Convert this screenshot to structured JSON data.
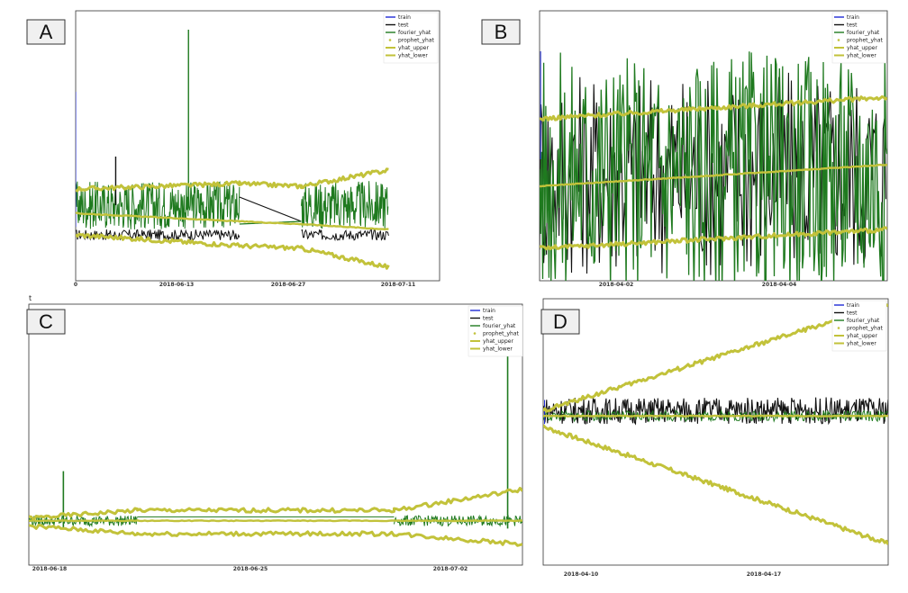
{
  "stray_mark": "t",
  "chart_data": [
    {
      "panel": "A",
      "type": "line",
      "legend": [
        "train",
        "test",
        "fourier_yhat",
        "prophet_yhat",
        "yhat_upper",
        "yhat_lower"
      ],
      "colors": {
        "train": "#1f2bd6",
        "test": "#111111",
        "fourier_yhat": "#1f7a1f",
        "prophet_yhat": "#c2c23a",
        "yhat_upper": "#c2c23a",
        "yhat_lower": "#c2c23a"
      },
      "xticks": [
        "0",
        "2018-06-13",
        "2018-06-27",
        "2018-07-11"
      ],
      "x_range": [
        0,
        100
      ],
      "y_range": [
        0,
        100
      ],
      "segments": [
        {
          "x0": 0,
          "x1": 45,
          "band": true
        },
        {
          "x0": 62,
          "x1": 86,
          "band": true
        }
      ],
      "gap": [
        45,
        62
      ],
      "yhat": [
        [
          0,
          25
        ],
        [
          45,
          22
        ],
        [
          62,
          21
        ],
        [
          86,
          19
        ]
      ],
      "yhat_upper": [
        [
          0,
          34
        ],
        [
          45,
          36
        ],
        [
          62,
          35
        ],
        [
          86,
          41
        ]
      ],
      "yhat_lower": [
        [
          0,
          17
        ],
        [
          45,
          13
        ],
        [
          62,
          12
        ],
        [
          86,
          5
        ]
      ],
      "green_center": 28,
      "green_amp": 9,
      "black_center": 17,
      "spikes": [
        [
          31,
          93
        ],
        [
          11,
          46
        ]
      ]
    },
    {
      "panel": "B",
      "type": "line",
      "legend": [
        "train",
        "test",
        "fourier_yhat",
        "prophet_yhat",
        "yhat_upper",
        "yhat_lower"
      ],
      "colors": {
        "train": "#1f2bd6",
        "test": "#111111",
        "fourier_yhat": "#1f7a1f",
        "prophet_yhat": "#c2c23a",
        "yhat_upper": "#c2c23a",
        "yhat_lower": "#c2c23a"
      },
      "xticks": [
        "2018-04-02",
        "2018-04-04"
      ],
      "x_range": [
        0,
        100
      ],
      "y_range": [
        0,
        100
      ],
      "yhat": [
        [
          0,
          35
        ],
        [
          100,
          43
        ]
      ],
      "yhat_upper": [
        [
          0,
          60
        ],
        [
          100,
          68
        ]
      ],
      "yhat_lower": [
        [
          0,
          12
        ],
        [
          100,
          19
        ]
      ],
      "green_center": 40,
      "green_amp": 45
    },
    {
      "panel": "C",
      "type": "line",
      "legend": [
        "train",
        "test",
        "fourier_yhat",
        "prophet_yhat",
        "yhat_upper",
        "yhat_lower"
      ],
      "colors": {
        "train": "#1f2bd6",
        "test": "#111111",
        "fourier_yhat": "#1f7a1f",
        "prophet_yhat": "#c2c23a",
        "yhat_upper": "#c2c23a",
        "yhat_lower": "#c2c23a"
      },
      "xticks": [
        "2018-06-18",
        "2018-06-25",
        "2018-07-02"
      ],
      "x_range": [
        0,
        100
      ],
      "y_range": [
        0,
        100
      ],
      "yhat": [
        [
          0,
          17
        ],
        [
          100,
          17
        ]
      ],
      "yhat_upper": [
        [
          0,
          18
        ],
        [
          22,
          21
        ],
        [
          74,
          21
        ],
        [
          100,
          29
        ]
      ],
      "yhat_lower": [
        [
          0,
          15
        ],
        [
          22,
          12
        ],
        [
          74,
          12
        ],
        [
          100,
          8
        ]
      ],
      "spikes": [
        [
          7,
          36
        ],
        [
          97,
          96
        ]
      ],
      "green_center": 17,
      "green_amp": 2
    },
    {
      "panel": "D",
      "type": "line",
      "legend": [
        "train",
        "test",
        "fourier_yhat",
        "prophet_yhat",
        "yhat_upper",
        "yhat_lower"
      ],
      "colors": {
        "train": "#1f2bd6",
        "test": "#111111",
        "fourier_yhat": "#1f7a1f",
        "prophet_yhat": "#c2c23a",
        "yhat_upper": "#c2c23a",
        "yhat_lower": "#c2c23a"
      },
      "xticks": [
        "2018-04-10",
        "2018-04-17"
      ],
      "x_range": [
        0,
        100
      ],
      "y_range": [
        0,
        100
      ],
      "yhat": [
        [
          0,
          56
        ],
        [
          100,
          56
        ]
      ],
      "yhat_upper": [
        [
          0,
          58
        ],
        [
          100,
          98
        ]
      ],
      "yhat_lower": [
        [
          0,
          52
        ],
        [
          100,
          8
        ]
      ],
      "black_center": 58,
      "black_amp": 5,
      "green_center": 56,
      "green_amp": 2
    }
  ]
}
